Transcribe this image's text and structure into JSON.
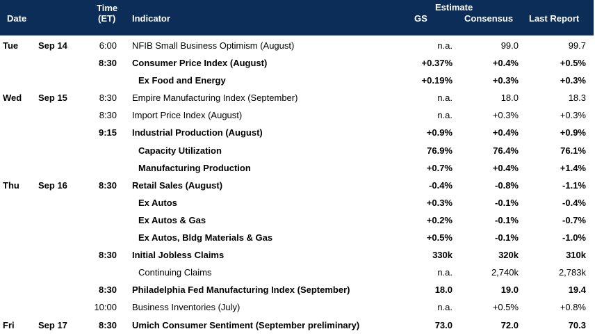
{
  "header": {
    "date": "Date",
    "time_line1": "Time",
    "time_line2": "(ET)",
    "indicator": "Indicator",
    "estimate": "Estimate",
    "gs": "GS",
    "consensus": "Consensus",
    "last_report": "Last Report"
  },
  "rows": [
    {
      "day": "Tue",
      "date": "Sep 14",
      "time": "6:00",
      "indicator": "NFIB Small Business Optimism (August)",
      "gs": "n.a.",
      "consensus": "99.0",
      "last": "99.7",
      "bold": false,
      "sub": false
    },
    {
      "day": "",
      "date": "",
      "time": "8:30",
      "indicator": "Consumer Price Index (August)",
      "gs": "+0.37%",
      "consensus": "+0.4%",
      "last": "+0.5%",
      "bold": true,
      "sub": false
    },
    {
      "day": "",
      "date": "",
      "time": "",
      "indicator": "Ex Food and Energy",
      "gs": "+0.19%",
      "consensus": "+0.3%",
      "last": "+0.3%",
      "bold": true,
      "sub": true
    },
    {
      "day": "Wed",
      "date": "Sep 15",
      "time": "8:30",
      "indicator": "Empire Manufacturing Index (September)",
      "gs": "n.a.",
      "consensus": "18.0",
      "last": "18.3",
      "bold": false,
      "sub": false
    },
    {
      "day": "",
      "date": "",
      "time": "8:30",
      "indicator": "Import Price Index (August)",
      "gs": "n.a.",
      "consensus": "+0.3%",
      "last": "+0.3%",
      "bold": false,
      "sub": false
    },
    {
      "day": "",
      "date": "",
      "time": "9:15",
      "indicator": "Industrial Production (August)",
      "gs": "+0.9%",
      "consensus": "+0.4%",
      "last": "+0.9%",
      "bold": true,
      "sub": false
    },
    {
      "day": "",
      "date": "",
      "time": "",
      "indicator": "Capacity Utilization",
      "gs": "76.9%",
      "consensus": "76.4%",
      "last": "76.1%",
      "bold": true,
      "sub": true
    },
    {
      "day": "",
      "date": "",
      "time": "",
      "indicator": "Manufacturing Production",
      "gs": "+0.7%",
      "consensus": "+0.4%",
      "last": "+1.4%",
      "bold": true,
      "sub": true
    },
    {
      "day": "Thu",
      "date": "Sep 16",
      "time": "8:30",
      "indicator": "Retail Sales (August)",
      "gs": "-0.4%",
      "consensus": "-0.8%",
      "last": "-1.1%",
      "bold": true,
      "sub": false
    },
    {
      "day": "",
      "date": "",
      "time": "",
      "indicator": "Ex Autos",
      "gs": "+0.3%",
      "consensus": "-0.1%",
      "last": "-0.4%",
      "bold": true,
      "sub": true
    },
    {
      "day": "",
      "date": "",
      "time": "",
      "indicator": "Ex Autos & Gas",
      "gs": "+0.2%",
      "consensus": "-0.1%",
      "last": "-0.7%",
      "bold": true,
      "sub": true
    },
    {
      "day": "",
      "date": "",
      "time": "",
      "indicator": "Ex Autos, Bldg Materials & Gas",
      "gs": "+0.5%",
      "consensus": "-0.1%",
      "last": "-1.0%",
      "bold": true,
      "sub": true
    },
    {
      "day": "",
      "date": "",
      "time": "8:30",
      "indicator": "Initial Jobless Claims",
      "gs": "330k",
      "consensus": "320k",
      "last": "310k",
      "bold": true,
      "sub": false
    },
    {
      "day": "",
      "date": "",
      "time": "",
      "indicator": "Continuing Claims",
      "gs": "n.a.",
      "consensus": "2,740k",
      "last": "2,783k",
      "bold": false,
      "sub": true
    },
    {
      "day": "",
      "date": "",
      "time": "8:30",
      "indicator": "Philadelphia Fed Manufacturing Index (September)",
      "gs": "18.0",
      "consensus": "19.0",
      "last": "19.4",
      "bold": true,
      "sub": false
    },
    {
      "day": "",
      "date": "",
      "time": "10:00",
      "indicator": "Business Inventories (July)",
      "gs": "n.a.",
      "consensus": "+0.5%",
      "last": "+0.8%",
      "bold": false,
      "sub": false
    },
    {
      "day": "Fri",
      "date": "Sep 17",
      "time": "8:30",
      "indicator": "Umich Consumer Sentiment (September preliminary)",
      "gs": "73.0",
      "consensus": "72.0",
      "last": "70.3",
      "bold": true,
      "sub": false
    }
  ]
}
